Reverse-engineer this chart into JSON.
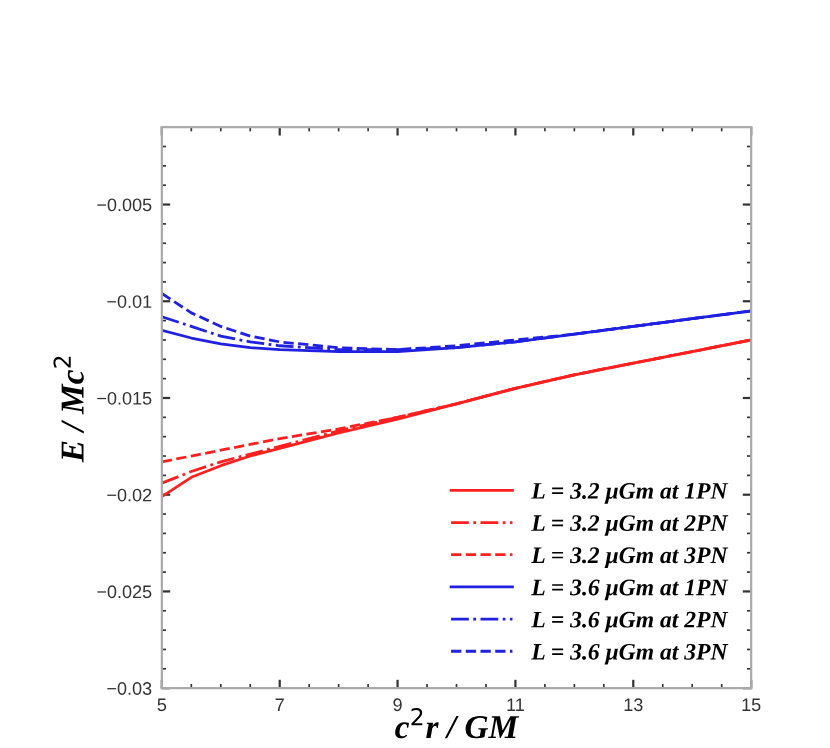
{
  "chart_data": {
    "type": "line",
    "xlabel": "c$^{2}$r / GM",
    "ylabel": "E / Mc$^{2}$",
    "xlim": [
      5,
      15
    ],
    "xticks": [
      5,
      7,
      9,
      11,
      13,
      15
    ],
    "ylim": [
      -0.03,
      -0.001
    ],
    "yticks": [
      {
        "value": -0.03,
        "label": "−0.03"
      },
      {
        "value": -0.025,
        "label": "−0.025"
      },
      {
        "value": -0.02,
        "label": "−0.02"
      },
      {
        "value": -0.015,
        "label": "−0.015"
      },
      {
        "value": -0.01,
        "label": "−0.01"
      },
      {
        "value": -0.005,
        "label": "−0.005"
      }
    ],
    "grid": false,
    "legend": "bottom right",
    "marker": "none",
    "x": [
      5,
      5.5,
      6,
      6.5,
      7,
      8,
      9,
      10,
      11,
      12,
      13,
      14,
      15
    ],
    "series": [
      {
        "name": "L = 3.2 μGm at 1PN",
        "color": "#ff2020",
        "line_style": "solid",
        "values": [
          -0.0201,
          -0.0191,
          -0.0185,
          -0.018,
          -0.0176,
          -0.0168,
          -0.0161,
          -0.0153,
          -0.0145,
          -0.0138,
          -0.0132,
          -0.0126,
          -0.012
        ]
      },
      {
        "name": "L = 3.2 μGm at 2PN",
        "color": "#ff2020",
        "line_style": "dashdot",
        "values": [
          -0.0194,
          -0.0188,
          -0.0183,
          -0.0179,
          -0.0175,
          -0.0167,
          -0.016,
          -0.0153,
          -0.0145,
          -0.0138,
          -0.0132,
          -0.0126,
          -0.012
        ]
      },
      {
        "name": "L = 3.2 μGm at 3PN",
        "color": "#ff2020",
        "line_style": "dashed",
        "values": [
          -0.0183,
          -0.018,
          -0.0177,
          -0.0174,
          -0.0171,
          -0.0166,
          -0.016,
          -0.0153,
          -0.0145,
          -0.0138,
          -0.0132,
          -0.0126,
          -0.012
        ]
      },
      {
        "name": "L = 3.6 μGm at 1PN",
        "color": "#2020e0",
        "line_style": "solid",
        "values": [
          -0.0115,
          -0.0119,
          -0.0122,
          -0.0124,
          -0.0125,
          -0.0126,
          -0.0126,
          -0.0124,
          -0.0121,
          -0.0117,
          -0.0113,
          -0.0109,
          -0.0105
        ]
      },
      {
        "name": "L = 3.6 μGm at 2PN",
        "color": "#2020e0",
        "line_style": "dashdot",
        "values": [
          -0.0108,
          -0.0113,
          -0.0118,
          -0.0121,
          -0.0123,
          -0.0125,
          -0.0125,
          -0.0124,
          -0.0121,
          -0.0117,
          -0.0113,
          -0.0109,
          -0.0105
        ]
      },
      {
        "name": "L = 3.6 μGm at 3PN",
        "color": "#2020e0",
        "line_style": "dashed",
        "values": [
          -0.0096,
          -0.0106,
          -0.0113,
          -0.0118,
          -0.0121,
          -0.0124,
          -0.0125,
          -0.0123,
          -0.012,
          -0.0117,
          -0.0113,
          -0.0109,
          -0.0105
        ]
      }
    ]
  }
}
